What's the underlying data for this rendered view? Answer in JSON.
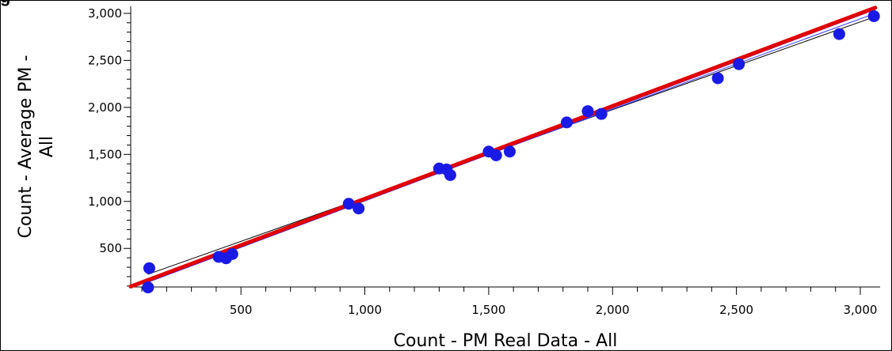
{
  "chart_data": {
    "type": "scatter",
    "title": "g",
    "xlabel": "Count - PM Real Data - All",
    "ylabel_lines": [
      "Count - Average PM -",
      "All"
    ],
    "xlim": [
      55,
      3080
    ],
    "ylim": [
      90,
      3075
    ],
    "x_ticks": [
      500,
      1000,
      1500,
      2000,
      2500,
      3000
    ],
    "x_tick_labels": [
      "500",
      "1,000",
      "1,500",
      "2,000",
      "2,500",
      "3,000"
    ],
    "y_ticks": [
      500,
      1000,
      1500,
      2000,
      2500,
      3000
    ],
    "y_tick_labels": [
      "500",
      "1,000",
      "1,500",
      "2,000",
      "2,500",
      "3,000"
    ],
    "grid": false,
    "legend": "none",
    "colors": {
      "points": "#1a1ae6",
      "fit": "#e00000",
      "bound": "#000000",
      "confidence": "#3333ff"
    },
    "series": [
      {
        "kind": "points",
        "x": [
          130,
          125,
          410,
          440,
          465,
          935,
          975,
          1300,
          1330,
          1345,
          1500,
          1530,
          1585,
          1815,
          1900,
          1955,
          2425,
          2510,
          2915,
          3055
        ],
        "y": [
          290,
          85,
          410,
          395,
          440,
          975,
          925,
          1350,
          1340,
          1280,
          1530,
          1490,
          1530,
          1840,
          1960,
          1930,
          2310,
          2460,
          2780,
          2970
        ]
      }
    ],
    "lines": [
      {
        "kind": "fit",
        "x": [
          55,
          3060
        ],
        "y": [
          95,
          3060
        ],
        "width": 5
      },
      {
        "kind": "bound",
        "x": [
          125,
          3060
        ],
        "y": [
          225,
          2965
        ],
        "width": 1
      },
      {
        "kind": "confidence",
        "x": [
          130,
          3060
        ],
        "y": [
          185,
          3000
        ],
        "width": 1
      },
      {
        "kind": "confidence",
        "x": [
          130,
          3060
        ],
        "y": [
          145,
          3040
        ],
        "width": 1
      }
    ]
  }
}
